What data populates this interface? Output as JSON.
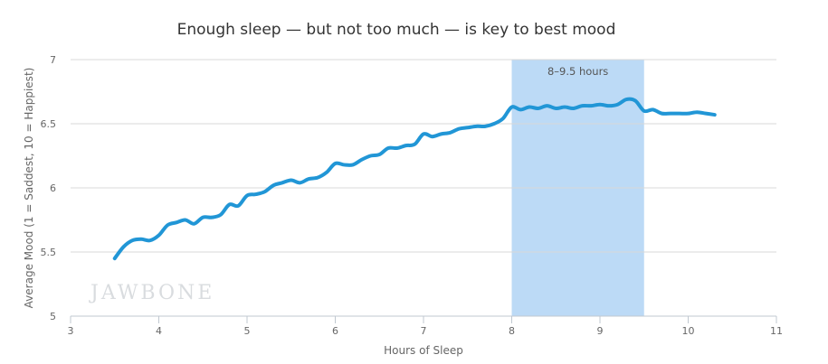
{
  "chart_data": {
    "type": "line",
    "title": "Enough sleep — but not too much — is key to best mood",
    "xlabel": "Hours of Sleep",
    "ylabel": "Average Mood (1 = Saddest, 10 = Happiest)",
    "xlim": [
      3,
      11
    ],
    "ylim": [
      5,
      7
    ],
    "xticks": [
      3,
      4,
      5,
      6,
      7,
      8,
      9,
      10,
      11
    ],
    "yticks": [
      5,
      5.5,
      6,
      6.5,
      7
    ],
    "grid": true,
    "legend": "none",
    "watermark": "JAWBONE",
    "band": {
      "from": 8,
      "to": 9.5,
      "label": "8–9.5 hours",
      "color": "#bcdaf6"
    },
    "line_color": "#2196d6",
    "series": [
      {
        "x": [
          3.5,
          3.6,
          3.7,
          3.8,
          3.9,
          4.0,
          4.1,
          4.2,
          4.3,
          4.4,
          4.5,
          4.6,
          4.7,
          4.8,
          4.9,
          5.0,
          5.1,
          5.2,
          5.3,
          5.4,
          5.5,
          5.6,
          5.7,
          5.8,
          5.9,
          6.0,
          6.1,
          6.2,
          6.3,
          6.4,
          6.5,
          6.6,
          6.7,
          6.8,
          6.9,
          7.0,
          7.1,
          7.2,
          7.3,
          7.4,
          7.5,
          7.6,
          7.7,
          7.8,
          7.9,
          8.0,
          8.1,
          8.2,
          8.3,
          8.4,
          8.5,
          8.6,
          8.7,
          8.8,
          8.9,
          9.0,
          9.1,
          9.2,
          9.3,
          9.4,
          9.5,
          9.6,
          9.7,
          9.8,
          9.9,
          10.0,
          10.1,
          10.2,
          10.3
        ],
        "values": [
          5.45,
          5.54,
          5.59,
          5.6,
          5.59,
          5.63,
          5.71,
          5.73,
          5.75,
          5.72,
          5.77,
          5.77,
          5.79,
          5.87,
          5.86,
          5.94,
          5.95,
          5.97,
          6.02,
          6.04,
          6.06,
          6.04,
          6.07,
          6.08,
          6.12,
          6.19,
          6.18,
          6.18,
          6.22,
          6.25,
          6.26,
          6.31,
          6.31,
          6.33,
          6.34,
          6.42,
          6.4,
          6.42,
          6.43,
          6.46,
          6.47,
          6.48,
          6.48,
          6.5,
          6.54,
          6.63,
          6.61,
          6.63,
          6.62,
          6.64,
          6.62,
          6.63,
          6.62,
          6.64,
          6.64,
          6.65,
          6.64,
          6.65,
          6.69,
          6.68,
          6.6,
          6.61,
          6.58,
          6.58,
          6.58,
          6.58,
          6.59,
          6.58,
          6.57
        ]
      }
    ]
  }
}
